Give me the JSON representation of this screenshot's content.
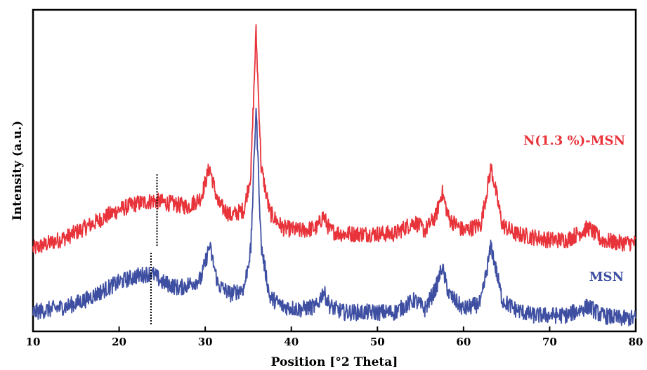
{
  "chart_data": {
    "type": "line",
    "title": "",
    "xlabel": "Position [°2 Theta]",
    "ylabel": "Intensity (a.u.)",
    "xlim": [
      10,
      80
    ],
    "ylim": [
      0,
      100
    ],
    "x_ticks": [
      "10",
      "20",
      "30",
      "40",
      "50",
      "60",
      "70",
      "80"
    ],
    "grid": false,
    "legend": "inline labels at right",
    "series": [
      {
        "name": "N(1.3 %)-MSN",
        "color": "#e8333a",
        "baseline": 24,
        "x": [
          10,
          12,
          14,
          16,
          18,
          20,
          22,
          24,
          26,
          28,
          29.5,
          30.5,
          31.5,
          33,
          34.5,
          35.3,
          35.9,
          36.5,
          37.5,
          39,
          41,
          43,
          43.7,
          44.5,
          46,
          48,
          50,
          52,
          54.3,
          55.5,
          56.8,
          57.5,
          58.3,
          60,
          62,
          63.2,
          64.5,
          66,
          68,
          70,
          72,
          74.5,
          76,
          78,
          80
        ],
        "y": [
          25,
          27,
          29,
          32,
          35,
          38,
          40,
          41,
          40,
          39,
          42,
          52,
          40,
          36,
          38,
          50,
          97,
          52,
          37,
          32,
          31,
          32,
          36,
          31,
          30,
          30,
          30,
          30,
          34,
          31,
          36,
          44,
          35,
          31,
          33,
          52,
          33,
          30,
          29,
          28,
          28,
          32,
          28,
          27,
          27
        ]
      },
      {
        "name": "MSN",
        "color": "#3e4fa2",
        "baseline": 0,
        "x": [
          10,
          12,
          14,
          16,
          18,
          20,
          22,
          23.8,
          25,
          27,
          29.5,
          30.5,
          31.5,
          33,
          34.5,
          35.3,
          35.9,
          36.5,
          37.5,
          39,
          41,
          43,
          43.7,
          44.5,
          46,
          48,
          50,
          52,
          54.3,
          55.5,
          56.8,
          57.5,
          58.3,
          60,
          62,
          63.2,
          64.5,
          66,
          68,
          70,
          72,
          74.5,
          76,
          78,
          80
        ],
        "y": [
          4,
          5,
          6,
          8,
          11,
          14,
          16,
          17,
          14,
          12,
          15,
          26,
          13,
          10,
          12,
          25,
          72,
          26,
          9,
          6,
          5,
          6,
          11,
          6,
          4,
          4,
          4,
          4,
          8,
          5,
          12,
          19,
          10,
          5,
          7,
          26,
          8,
          5,
          3,
          3,
          3,
          6,
          3,
          2,
          2
        ]
      }
    ],
    "annotations": [
      {
        "type": "dotted-vline",
        "x": 24.4,
        "y_from": 26,
        "y_to": 50,
        "color": "#000"
      },
      {
        "type": "dotted-vline",
        "x": 23.7,
        "y_from": 0,
        "y_to": 24,
        "color": "#000"
      }
    ]
  }
}
